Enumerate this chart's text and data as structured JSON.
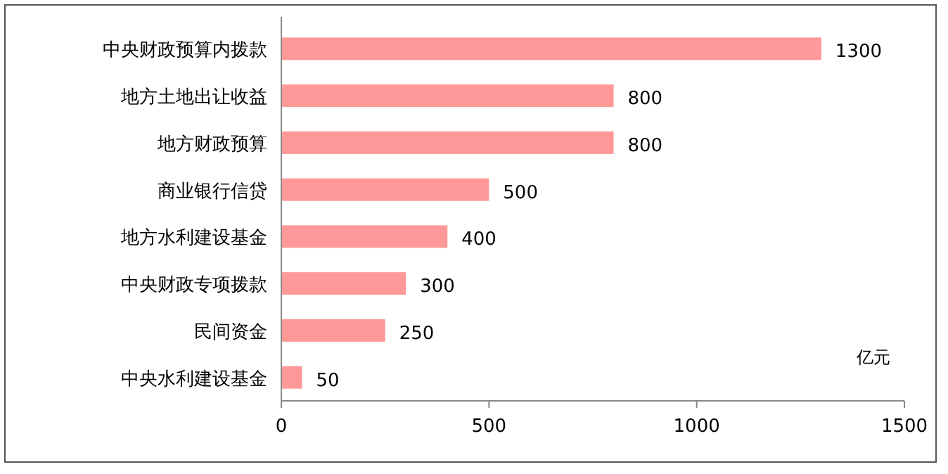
{
  "chart_data": {
    "type": "bar",
    "orientation": "horizontal",
    "categories": [
      "中央财政预算内拨款",
      "地方土地出让收益",
      "地方财政预算",
      "商业银行信贷",
      "地方水利建设基金",
      "中央财政专项拨款",
      "民间资金",
      "中央水利建设基金"
    ],
    "values": [
      1300,
      800,
      800,
      500,
      400,
      300,
      250,
      50
    ],
    "color": "#ff9999",
    "xlim": [
      0,
      1500
    ],
    "xticks": [
      0,
      500,
      1000,
      1500
    ],
    "data_labels": true,
    "annotations": [
      "亿元"
    ]
  }
}
